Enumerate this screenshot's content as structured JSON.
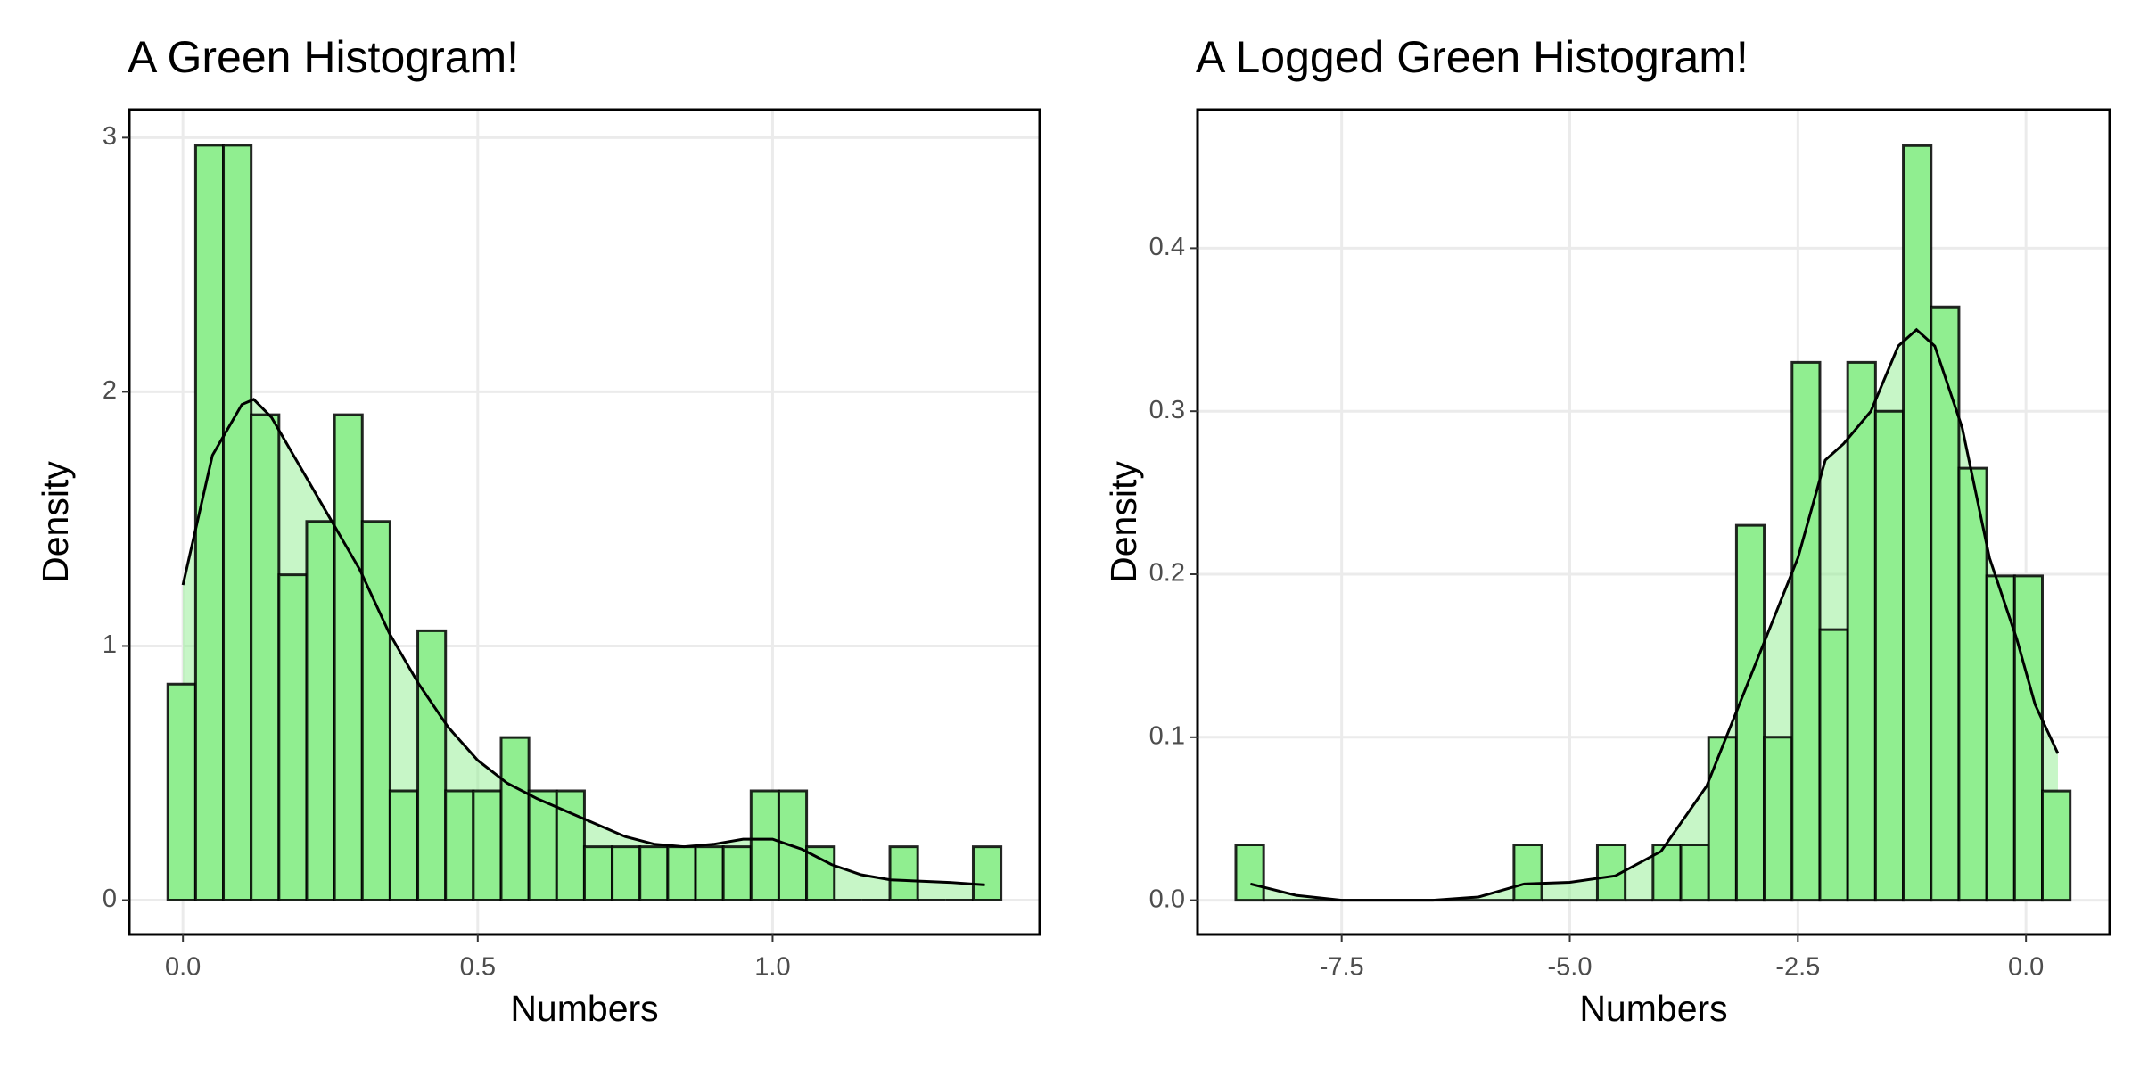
{
  "chart_data": [
    {
      "type": "histogram",
      "title": "A Green Histogram!",
      "x_label": "Numbers",
      "y_label": "Density",
      "color": "#90ee90",
      "edgecolor": "#000000",
      "grid": true,
      "bins": [
        -0.0256,
        0.0215,
        0.0686,
        0.1157,
        0.1628,
        0.2099,
        0.257,
        0.3041,
        0.3512,
        0.3983,
        0.4454,
        0.4925,
        0.5396,
        0.5867,
        0.6338,
        0.6809,
        0.728,
        0.7751,
        0.8222,
        0.8693,
        0.9164,
        0.9635,
        1.0106,
        1.0577,
        1.1048,
        1.1519,
        1.199,
        1.2461,
        1.2932,
        1.3403,
        1.3874
      ],
      "values": [
        0.85,
        2.97,
        2.97,
        1.91,
        1.28,
        1.49,
        1.91,
        1.49,
        0.43,
        1.06,
        0.43,
        0.43,
        0.64,
        0.43,
        0.43,
        0.21,
        0.21,
        0.21,
        0.21,
        0.21,
        0.21,
        0.43,
        0.43,
        0.21,
        0,
        0,
        0.21,
        0,
        0,
        0.21
      ],
      "density": {
        "x": [
          0,
          0.05,
          0.1,
          0.12,
          0.15,
          0.2,
          0.25,
          0.3,
          0.35,
          0.4,
          0.45,
          0.5,
          0.55,
          0.6,
          0.65,
          0.7,
          0.75,
          0.8,
          0.85,
          0.9,
          0.95,
          1.0,
          1.05,
          1.1,
          1.15,
          1.2,
          1.3,
          1.36
        ],
        "y": [
          1.24,
          1.75,
          1.95,
          1.97,
          1.9,
          1.7,
          1.5,
          1.3,
          1.05,
          0.85,
          0.68,
          0.55,
          0.46,
          0.4,
          0.35,
          0.3,
          0.25,
          0.22,
          0.21,
          0.22,
          0.24,
          0.24,
          0.2,
          0.14,
          0.1,
          0.08,
          0.07,
          0.06
        ]
      },
      "xlim": [
        -0.091,
        1.453
      ],
      "ylim": [
        -0.135,
        3.11
      ],
      "xticks": [
        {
          "value": 0,
          "label": "0.0"
        },
        0.5,
        {
          "value": 1,
          "label": "1.0"
        }
      ],
      "yticks": [
        0,
        1,
        2,
        3
      ]
    },
    {
      "type": "histogram",
      "title": "A Logged Green Histogram!",
      "x_label": "Numbers",
      "y_label": "Density",
      "color": "#90ee90",
      "edgecolor": "#000000",
      "grid": true,
      "bins": [
        -8.66,
        -8.3552,
        -8.0504,
        -7.7456,
        -7.4408,
        -7.136,
        -6.8312,
        -6.5264,
        -6.2216,
        -5.9168,
        -5.612,
        -5.3072,
        -5.0024,
        -4.6976,
        -4.3928,
        -4.088,
        -3.7832,
        -3.4784,
        -3.1736,
        -2.8688,
        -2.564,
        -2.2592,
        -1.9544,
        -1.6496,
        -1.3448,
        -1.04,
        -0.7352,
        -0.4304,
        -0.1256,
        0.1792,
        0.484
      ],
      "values": [
        0.034,
        0,
        0,
        0,
        0,
        0,
        0,
        0,
        0,
        0,
        0.034,
        0,
        0,
        0.034,
        0,
        0.034,
        0.034,
        0.1,
        0.23,
        0.1,
        0.33,
        0.166,
        0.33,
        0.3,
        0.463,
        0.364,
        0.265,
        0.199,
        0.199,
        0.067
      ],
      "density": {
        "x": [
          -8.5,
          -8,
          -7.5,
          -6.5,
          -6,
          -5.5,
          -5,
          -4.5,
          -4,
          -3.5,
          -3,
          -2.5,
          -2.2,
          -2,
          -1.7,
          -1.4,
          -1.2,
          -1,
          -0.7,
          -0.4,
          -0.1,
          0.1,
          0.35
        ],
        "y": [
          0.01,
          0.003,
          0,
          0,
          0.002,
          0.01,
          0.011,
          0.015,
          0.03,
          0.07,
          0.14,
          0.21,
          0.27,
          0.28,
          0.3,
          0.34,
          0.35,
          0.34,
          0.29,
          0.21,
          0.16,
          0.12,
          0.09
        ]
      },
      "xlim": [
        -9.08,
        0.917
      ],
      "ylim": [
        -0.021,
        0.485
      ],
      "xticks": [
        -7.5,
        {
          "value": -5,
          "label": "-5.0"
        },
        -2.5,
        {
          "value": 0,
          "label": "0.0"
        }
      ],
      "yticks": [
        {
          "value": 0,
          "label": "0.0"
        },
        0.1,
        0.2,
        0.3,
        0.4
      ]
    }
  ]
}
